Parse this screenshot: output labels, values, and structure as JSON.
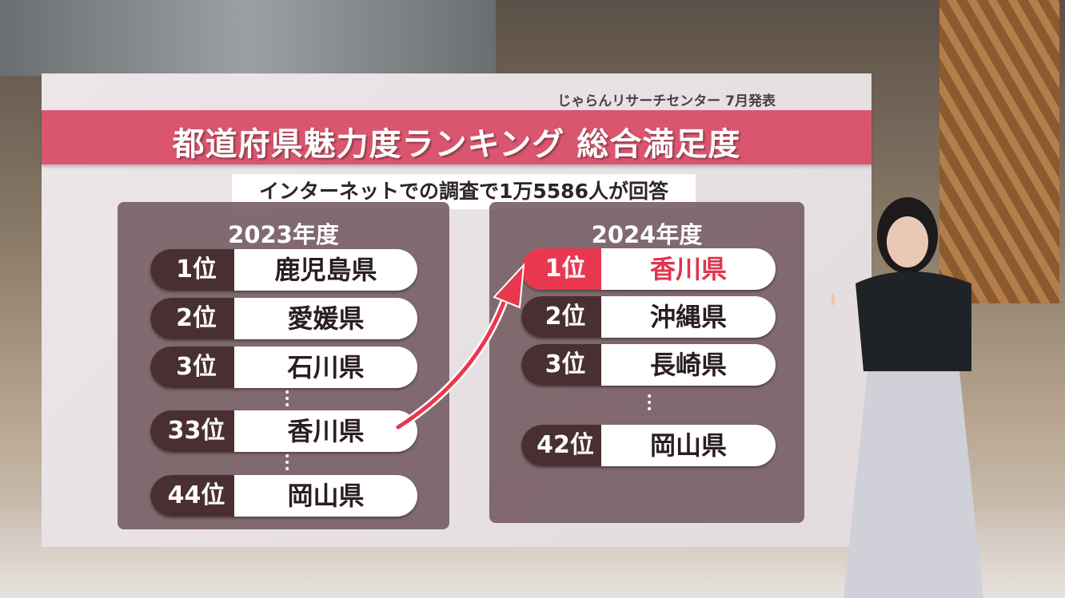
{
  "source": "じゃらんリサーチセンター 7月発表",
  "title": "都道府県魅力度ランキング 総合満足度",
  "subtitle": "インターネットでの調査で1万5586人が回答",
  "colors": {
    "title_bar": "#d9566e",
    "highlight": "#e8384f",
    "badge": "#4a2f32"
  },
  "left": {
    "year": "2023年度",
    "rows": [
      {
        "rank": "1位",
        "pref": "鹿児島県"
      },
      {
        "rank": "2位",
        "pref": "愛媛県"
      },
      {
        "rank": "3位",
        "pref": "石川県"
      },
      {
        "rank": "33位",
        "pref": "香川県"
      },
      {
        "rank": "44位",
        "pref": "岡山県"
      }
    ]
  },
  "right": {
    "year": "2024年度",
    "rows": [
      {
        "rank": "1位",
        "pref": "香川県"
      },
      {
        "rank": "2位",
        "pref": "沖縄県"
      },
      {
        "rank": "3位",
        "pref": "長崎県"
      },
      {
        "rank": "42位",
        "pref": "岡山県"
      }
    ]
  }
}
